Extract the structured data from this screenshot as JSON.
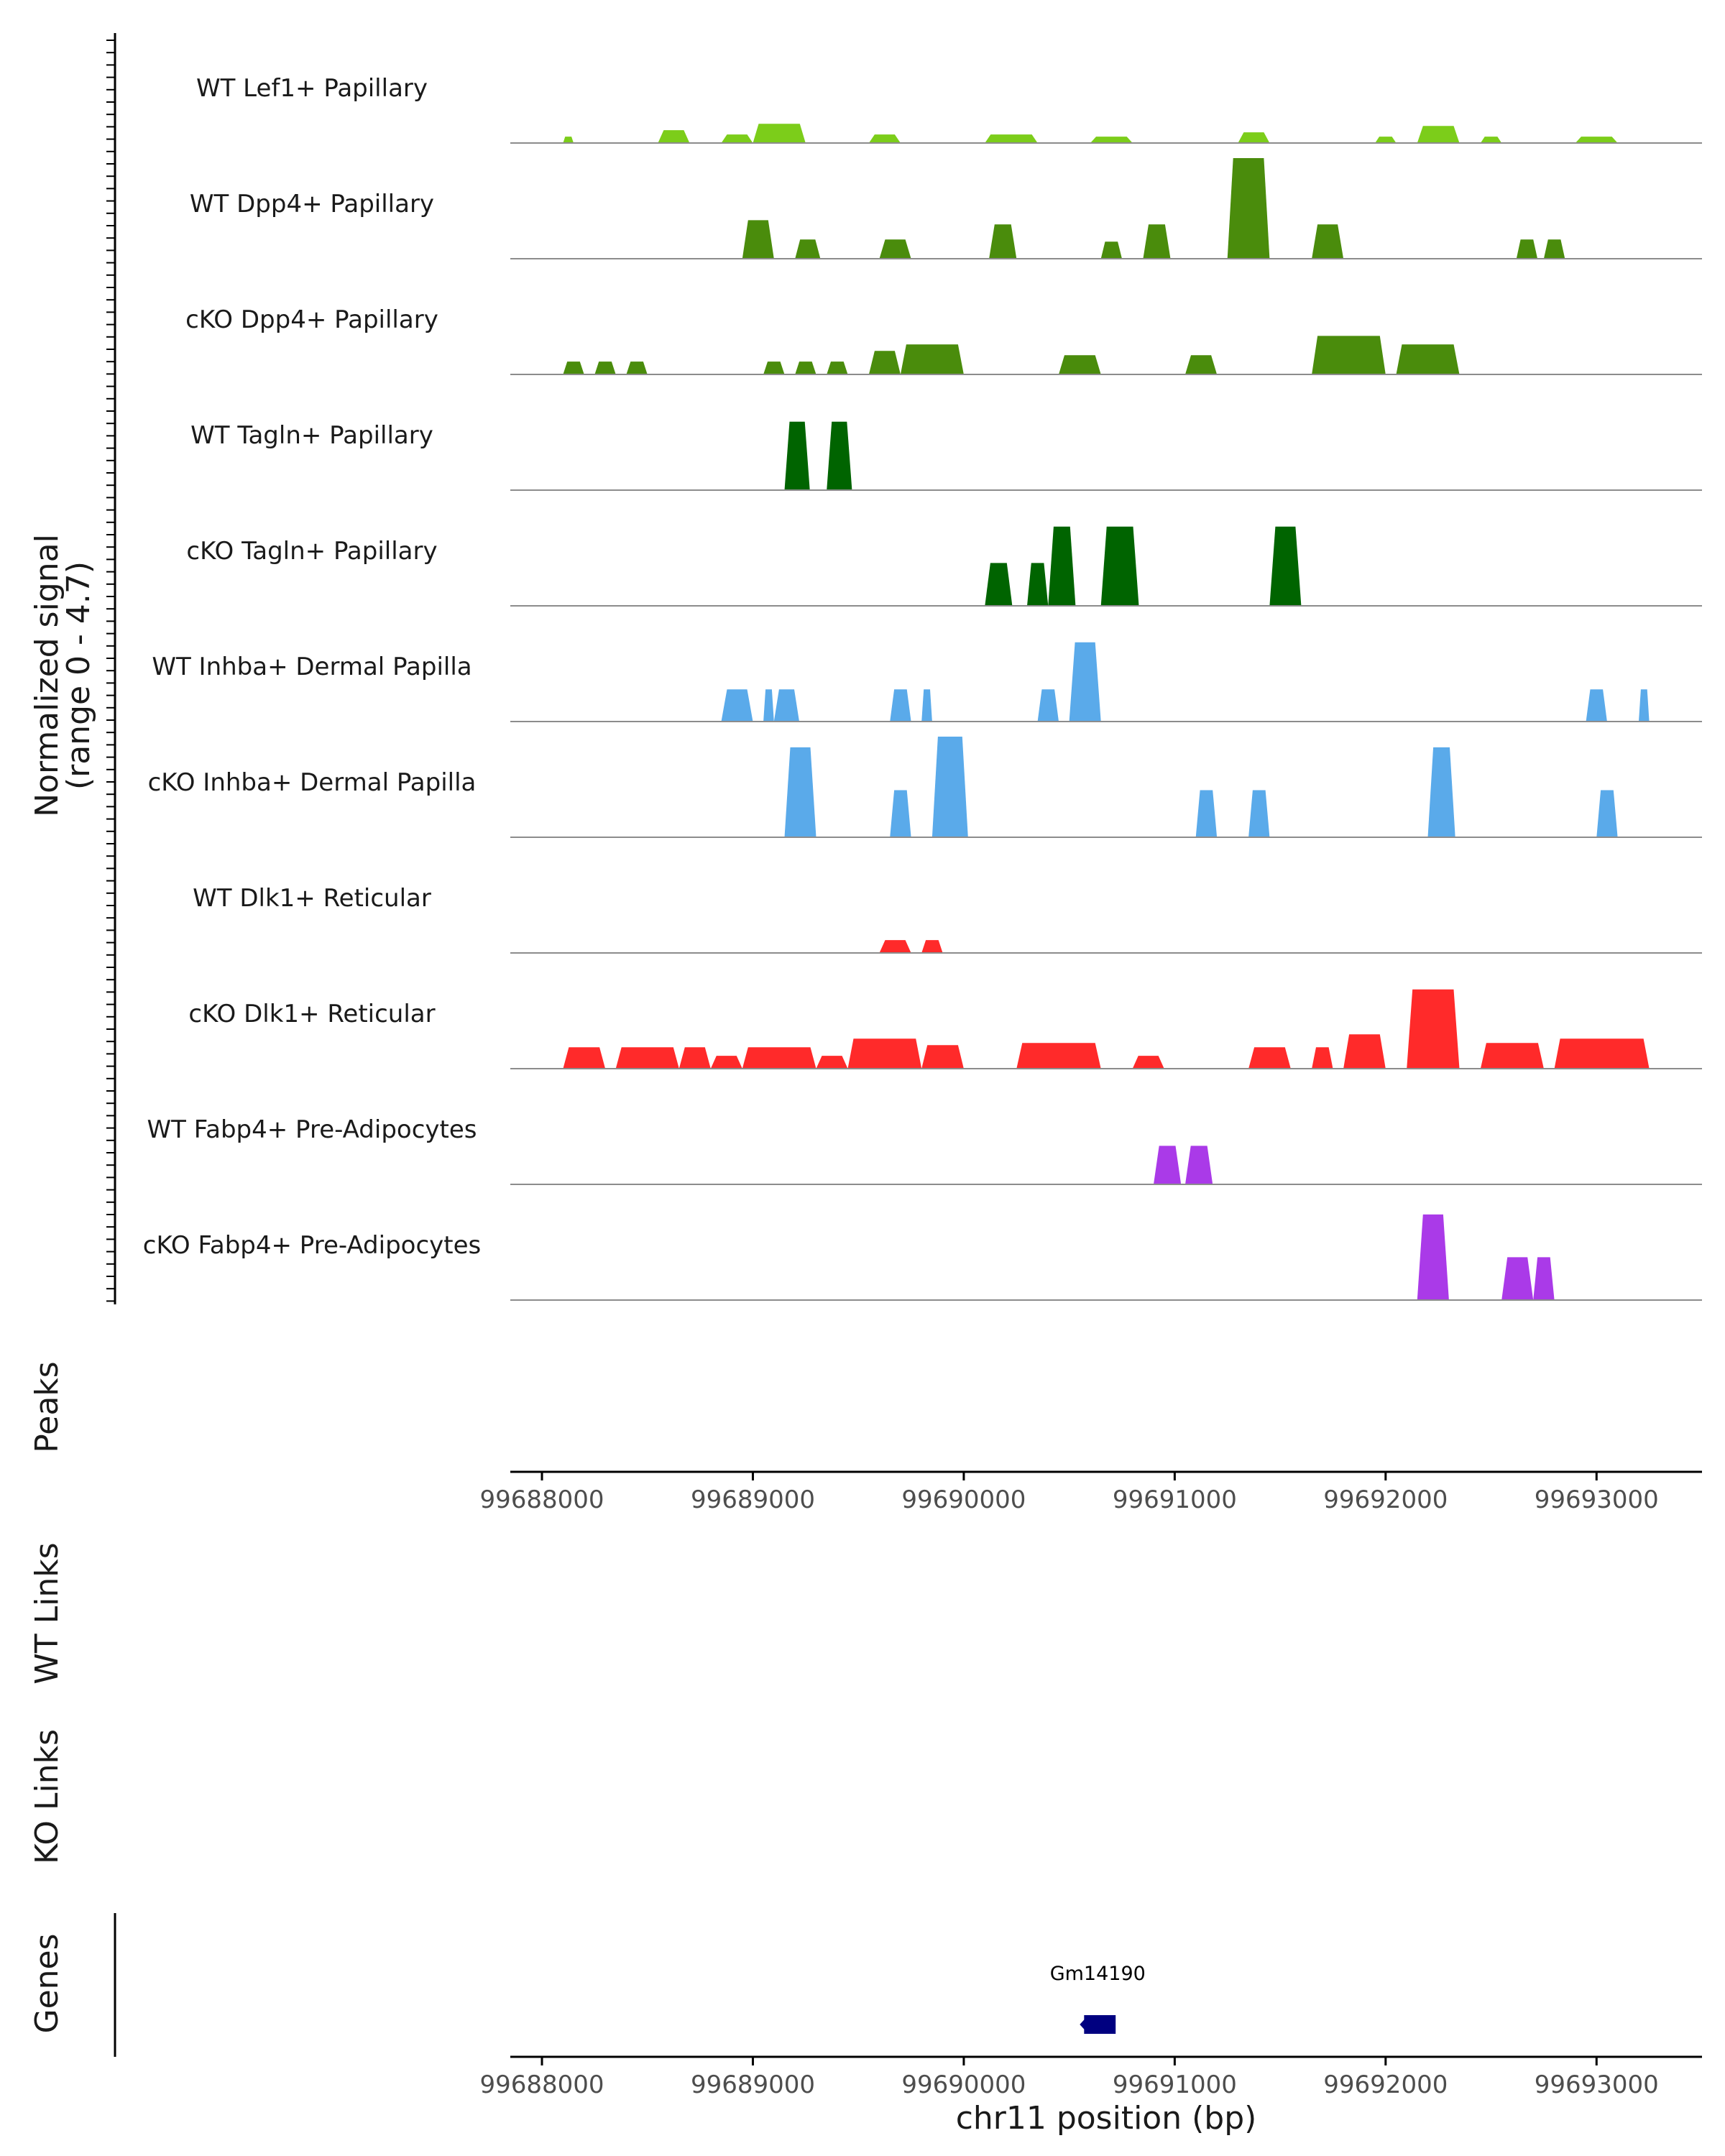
{
  "chart_data": {
    "type": "area",
    "region": {
      "chrom": "chr11",
      "start": 99687850,
      "end": 99693500
    },
    "signal_range": [
      0,
      4.7
    ],
    "y_axis_label": "Normalized signal\n(range 0 - 4.7)",
    "x_axis_label": "chr11 position (bp)",
    "x_ticks": [
      99688000,
      99689000,
      99690000,
      99691000,
      99692000,
      99693000
    ],
    "x_tick_labels": [
      "99688000",
      "99689000",
      "99690000",
      "99691000",
      "99692000",
      "99693000"
    ],
    "tracks": [
      {
        "name": "WT Lef1+ Papillary",
        "color": "#7ccd1a",
        "peaks": [
          [
            99688100,
            99688150,
            0.3
          ],
          [
            99688550,
            99688700,
            0.6
          ],
          [
            99688850,
            99689000,
            0.4
          ],
          [
            99689000,
            99689250,
            0.9
          ],
          [
            99689550,
            99689700,
            0.4
          ],
          [
            99690100,
            99690350,
            0.4
          ],
          [
            99690600,
            99690800,
            0.3
          ],
          [
            99691300,
            99691450,
            0.5
          ],
          [
            99691950,
            99692050,
            0.3
          ],
          [
            99692150,
            99692350,
            0.8
          ],
          [
            99692450,
            99692550,
            0.3
          ],
          [
            99692900,
            99693100,
            0.3
          ]
        ]
      },
      {
        "name": "WT Dpp4+ Papillary",
        "color": "#4a8c0c",
        "peaks": [
          [
            99688950,
            99689100,
            1.8
          ],
          [
            99689200,
            99689320,
            0.9
          ],
          [
            99689600,
            99689750,
            0.9
          ],
          [
            99690120,
            99690250,
            1.6
          ],
          [
            99690650,
            99690750,
            0.8
          ],
          [
            99690850,
            99690980,
            1.6
          ],
          [
            99691250,
            99691450,
            4.7
          ],
          [
            99691650,
            99691800,
            1.6
          ],
          [
            99692620,
            99692720,
            0.9
          ],
          [
            99692750,
            99692850,
            0.9
          ]
        ]
      },
      {
        "name": "cKO Dpp4+ Papillary",
        "color": "#4a8c0c",
        "peaks": [
          [
            99688100,
            99688200,
            0.6
          ],
          [
            99688250,
            99688350,
            0.6
          ],
          [
            99688400,
            99688500,
            0.6
          ],
          [
            99689050,
            99689150,
            0.6
          ],
          [
            99689200,
            99689300,
            0.6
          ],
          [
            99689350,
            99689450,
            0.6
          ],
          [
            99689550,
            99689700,
            1.1
          ],
          [
            99689700,
            99690000,
            1.4
          ],
          [
            99690450,
            99690650,
            0.9
          ],
          [
            99691050,
            99691200,
            0.9
          ],
          [
            99691650,
            99692000,
            1.8
          ],
          [
            99692050,
            99692350,
            1.4
          ]
        ]
      },
      {
        "name": "WT Tagln+ Papillary",
        "color": "#006400",
        "peaks": [
          [
            99689150,
            99689270,
            3.2
          ],
          [
            99689350,
            99689470,
            3.2
          ]
        ]
      },
      {
        "name": "cKO Tagln+ Papillary",
        "color": "#006400",
        "peaks": [
          [
            99690100,
            99690230,
            2.0
          ],
          [
            99690300,
            99690400,
            2.0
          ],
          [
            99690400,
            99690530,
            3.7
          ],
          [
            99690650,
            99690830,
            3.7
          ],
          [
            99691450,
            99691600,
            3.7
          ]
        ]
      },
      {
        "name": "WT Inhba+ Dermal Papilla",
        "color": "#5aaaea",
        "peaks": [
          [
            99688850,
            99689000,
            1.5
          ],
          [
            99689050,
            99689100,
            1.5
          ],
          [
            99689100,
            99689220,
            1.5
          ],
          [
            99689650,
            99689750,
            1.5
          ],
          [
            99689800,
            99689850,
            1.5
          ],
          [
            99690350,
            99690450,
            1.5
          ],
          [
            99690500,
            99690650,
            3.7
          ],
          [
            99692950,
            99693050,
            1.5
          ],
          [
            99693200,
            99693250,
            1.5
          ]
        ]
      },
      {
        "name": "cKO Inhba+ Dermal Papilla",
        "color": "#5aaaea",
        "peaks": [
          [
            99689150,
            99689300,
            4.2
          ],
          [
            99689650,
            99689750,
            2.2
          ],
          [
            99689850,
            99690020,
            4.7
          ],
          [
            99691100,
            99691200,
            2.2
          ],
          [
            99691350,
            99691450,
            2.2
          ],
          [
            99692200,
            99692330,
            4.2
          ],
          [
            99693000,
            99693100,
            2.2
          ]
        ]
      },
      {
        "name": "WT Dlk1+ Reticular",
        "color": "#ff2a2a",
        "peaks": [
          [
            99689600,
            99689750,
            0.6
          ],
          [
            99689800,
            99689900,
            0.6
          ]
        ]
      },
      {
        "name": "cKO Dlk1+ Reticular",
        "color": "#ff2a2a",
        "peaks": [
          [
            99688100,
            99688300,
            1.0
          ],
          [
            99688350,
            99688650,
            1.0
          ],
          [
            99688650,
            99688800,
            1.0
          ],
          [
            99688800,
            99688950,
            0.6
          ],
          [
            99688950,
            99689300,
            1.0
          ],
          [
            99689300,
            99689450,
            0.6
          ],
          [
            99689450,
            99689800,
            1.4
          ],
          [
            99689800,
            99690000,
            1.1
          ],
          [
            99690250,
            99690650,
            1.2
          ],
          [
            99690800,
            99690950,
            0.6
          ],
          [
            99691350,
            99691550,
            1.0
          ],
          [
            99691650,
            99691750,
            1.0
          ],
          [
            99691800,
            99692000,
            1.6
          ],
          [
            99692100,
            99692350,
            3.7
          ],
          [
            99692450,
            99692750,
            1.2
          ],
          [
            99692800,
            99693250,
            1.4
          ]
        ]
      },
      {
        "name": "WT Fabp4+ Pre-Adipocytes",
        "color": "#aa3ae8",
        "peaks": [
          [
            99690900,
            99691030,
            1.8
          ],
          [
            99691050,
            99691180,
            1.8
          ]
        ]
      },
      {
        "name": "cKO Fabp4+ Pre-Adipocytes",
        "color": "#aa3ae8",
        "peaks": [
          [
            99692150,
            99692300,
            4.0
          ],
          [
            99692550,
            99692700,
            2.0
          ],
          [
            99692700,
            99692800,
            2.0
          ]
        ]
      }
    ],
    "peaks_label": "Peaks",
    "wt_links_label": "WT Links",
    "ko_links_label": "KO Links",
    "genes_label": "Genes",
    "genes": [
      {
        "name": "Gm14190",
        "start": 99690550,
        "end": 99690720,
        "color": "#000080"
      }
    ]
  }
}
